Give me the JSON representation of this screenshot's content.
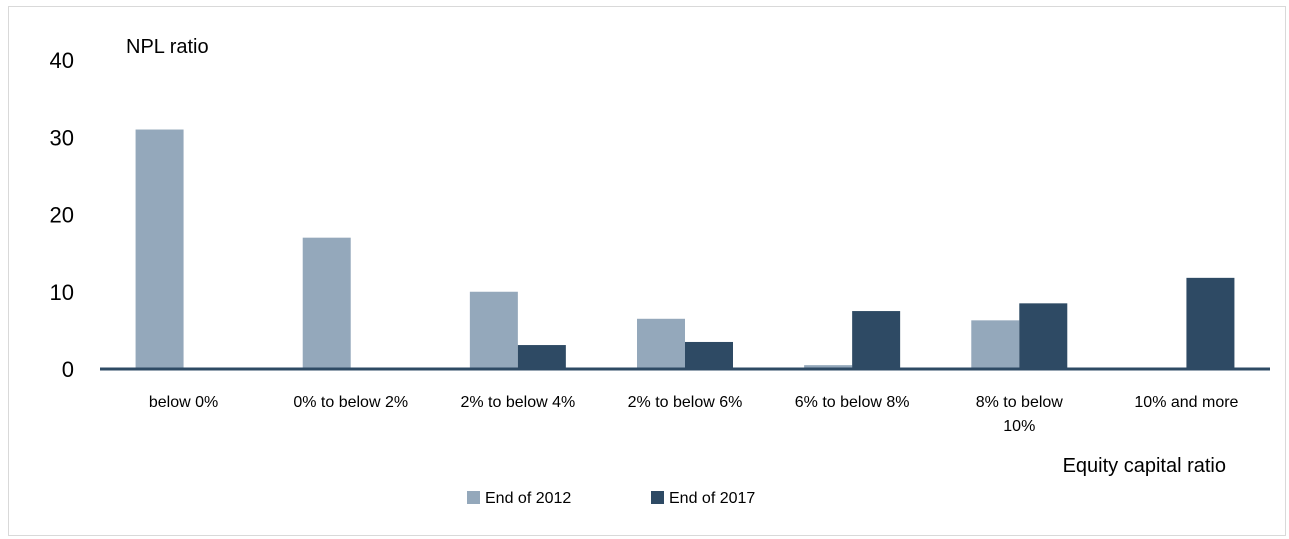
{
  "chart_data": {
    "type": "bar",
    "ylabel": "NPL ratio",
    "xlabel": "Equity capital ratio",
    "ylim": [
      0,
      40
    ],
    "yticks": [
      "0",
      "10",
      "20",
      "30",
      "40"
    ],
    "categories": [
      "below 0%",
      "0% to below 2%",
      "2% to below 4%",
      "2% to below 6%",
      "6% to below 8%",
      "8% to below 10%",
      "10% and more"
    ],
    "series": [
      {
        "name": "End of 2012",
        "color": "#94a8bb",
        "values": [
          31.0,
          17.0,
          10.0,
          6.5,
          0.5,
          6.3,
          0
        ]
      },
      {
        "name": "End of 2017",
        "color": "#2e4a64",
        "values": [
          0,
          0,
          3.1,
          3.5,
          7.5,
          8.5,
          11.8
        ]
      }
    ],
    "legend_position": "bottom",
    "grid": false
  }
}
